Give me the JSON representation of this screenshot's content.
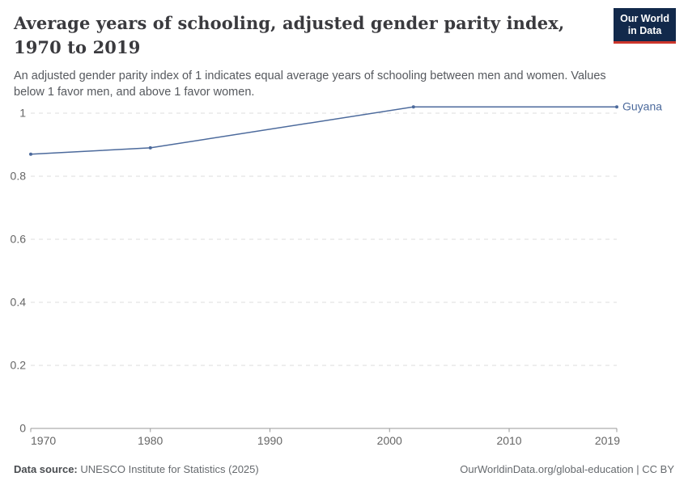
{
  "header": {
    "title": "Average years of schooling, adjusted gender parity index, 1970 to 2019",
    "subtitle": "An adjusted gender parity index of 1 indicates equal average years of schooling between men and women. Values below 1 favor men, and above 1 favor women.",
    "logo": {
      "line1": "Our World",
      "line2": "in Data"
    }
  },
  "chart_data": {
    "type": "line",
    "title": "Average years of schooling, adjusted gender parity index, 1970 to 2019",
    "xlabel": "",
    "ylabel": "",
    "xlim": [
      1970,
      2019
    ],
    "ylim": [
      0,
      1
    ],
    "grid": "dashed horizontal",
    "legend_position": "end-of-line label",
    "x_ticks": [
      1970,
      1980,
      1990,
      2000,
      2010,
      2019
    ],
    "x_tick_labels": [
      "1970",
      "1980",
      "1990",
      "2000",
      "2010",
      "2019"
    ],
    "y_ticks": [
      0,
      0.2,
      0.4,
      0.6,
      0.8,
      1
    ],
    "y_tick_labels": [
      "0",
      "0.2",
      "0.4",
      "0.6",
      "0.8",
      "1"
    ],
    "series": [
      {
        "name": "Guyana",
        "color": "#4c6a9c",
        "points": [
          {
            "x": 1970,
            "y": 0.87
          },
          {
            "x": 1980,
            "y": 0.89
          },
          {
            "x": 2002,
            "y": 1.02
          },
          {
            "x": 2019,
            "y": 1.02
          }
        ]
      }
    ],
    "colors": {
      "gridline": "#dcdcdc",
      "axis": "#999999",
      "tick_label": "#666666"
    }
  },
  "footer": {
    "datasource_label": "Data source:",
    "datasource_value": " UNESCO Institute for Statistics (2025)",
    "attribution": "OurWorldinData.org/global-education | CC BY"
  }
}
